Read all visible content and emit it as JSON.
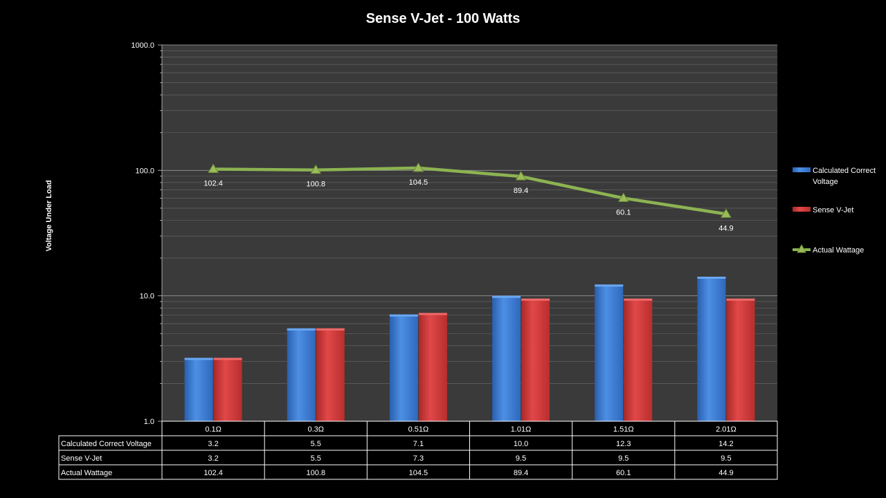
{
  "colors": {
    "background": "#000000",
    "plot_area": "#3a3a3a",
    "series_blue": "#3f7fd6",
    "series_red": "#d43c3c",
    "series_green": "#8cb352",
    "gridline": "#6a6a6a"
  },
  "chart_data": {
    "type": "bar",
    "title": "Sense V-Jet - 100 Watts",
    "ylabel": "Voltage Under Load",
    "xlabel": "",
    "yscale": "log",
    "ylim": [
      1,
      1000
    ],
    "ytick_labels": [
      "1.0",
      "10.0",
      "100.0",
      "1000.0"
    ],
    "categories": [
      "0.1Ω",
      "0.3Ω",
      "0.51Ω",
      "1.01Ω",
      "1.51Ω",
      "2.01Ω"
    ],
    "series": [
      {
        "name": "Calculated Correct Voltage",
        "type": "bar",
        "color": "#3f7fd6",
        "values": [
          3.2,
          5.5,
          7.1,
          10.0,
          12.3,
          14.2
        ]
      },
      {
        "name": "Sense V-Jet",
        "type": "bar",
        "color": "#d43c3c",
        "values": [
          3.2,
          5.5,
          7.3,
          9.5,
          9.5,
          9.5
        ]
      },
      {
        "name": "Actual Wattage",
        "type": "line",
        "color": "#8cb352",
        "values": [
          102.4,
          100.8,
          104.5,
          89.4,
          60.1,
          44.9
        ]
      }
    ],
    "data_labels": [
      "102.4",
      "100.8",
      "104.5",
      "89.4",
      "60.1",
      "44.9"
    ],
    "legend": {
      "position": "right",
      "entries": [
        "Calculated Correct Voltage",
        "Sense V-Jet",
        "Actual Wattage"
      ]
    },
    "grid": true,
    "table": {
      "header": [
        "0.1Ω",
        "0.3Ω",
        "0.51Ω",
        "1.01Ω",
        "1.51Ω",
        "2.01Ω"
      ],
      "rows": [
        {
          "label": "Calculated Correct Voltage",
          "values": [
            "3.2",
            "5.5",
            "7.1",
            "10.0",
            "12.3",
            "14.2"
          ]
        },
        {
          "label": "Sense V-Jet",
          "values": [
            "3.2",
            "5.5",
            "7.3",
            "9.5",
            "9.5",
            "9.5"
          ]
        },
        {
          "label": "Actual Wattage",
          "values": [
            "102.4",
            "100.8",
            "104.5",
            "89.4",
            "60.1",
            "44.9"
          ]
        }
      ]
    }
  }
}
